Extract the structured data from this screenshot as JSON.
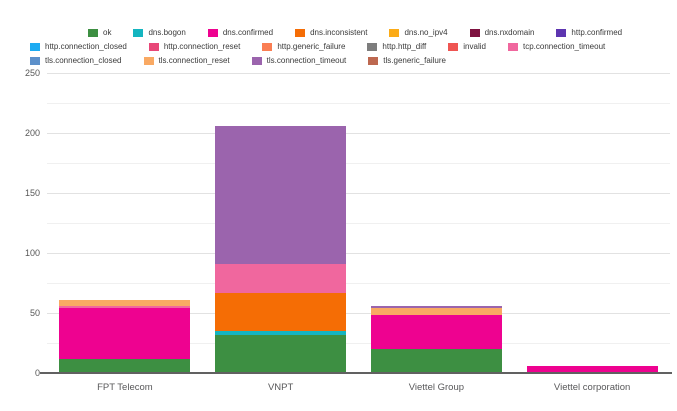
{
  "chart_data": {
    "type": "bar",
    "stacked": true,
    "title": "",
    "xlabel": "",
    "ylabel": "",
    "categories": [
      "FPT Telecom",
      "VNPT",
      "Viettel Group",
      "Viettel corporation"
    ],
    "series": [
      {
        "name": "ok",
        "values": [
          12,
          32,
          20,
          0
        ]
      },
      {
        "name": "dns.bogon",
        "values": [
          0,
          3,
          0,
          0
        ]
      },
      {
        "name": "dns.confirmed",
        "values": [
          42,
          0,
          28,
          6
        ]
      },
      {
        "name": "dns.inconsistent",
        "values": [
          0,
          32,
          0,
          0
        ]
      },
      {
        "name": "dns.no_ipv4",
        "values": [
          0,
          0,
          0,
          0
        ]
      },
      {
        "name": "dns.nxdomain",
        "values": [
          0,
          0,
          0,
          0
        ]
      },
      {
        "name": "http.confirmed",
        "values": [
          0,
          0,
          0,
          0
        ]
      },
      {
        "name": "http.connection_closed",
        "values": [
          0,
          0,
          0,
          0
        ]
      },
      {
        "name": "http.connection_reset",
        "values": [
          0,
          0,
          0,
          0
        ]
      },
      {
        "name": "http.generic_failure",
        "values": [
          0,
          0,
          0,
          0
        ]
      },
      {
        "name": "http.http_diff",
        "values": [
          0,
          0,
          0,
          0
        ]
      },
      {
        "name": "invalid",
        "values": [
          0,
          0,
          0,
          0
        ]
      },
      {
        "name": "tcp.connection_timeout",
        "values": [
          2,
          24,
          0,
          0
        ]
      },
      {
        "name": "tls.connection_closed",
        "values": [
          0,
          0,
          0,
          0
        ]
      },
      {
        "name": "tls.connection_reset",
        "values": [
          5,
          0,
          6,
          0
        ]
      },
      {
        "name": "tls.connection_timeout",
        "values": [
          0,
          115,
          2,
          0
        ]
      },
      {
        "name": "tls.generic_failure",
        "values": [
          0,
          0,
          0,
          0
        ]
      }
    ],
    "colors": {
      "ok": "#3d8f42",
      "dns.bogon": "#14b5c0",
      "dns.confirmed": "#ee0290",
      "dns.inconsistent": "#f56d05",
      "dns.no_ipv4": "#fbab17",
      "dns.nxdomain": "#7e1240",
      "http.confirmed": "#5d35b0",
      "http.connection_closed": "#1cabf2",
      "http.connection_reset": "#e84778",
      "http.generic_failure": "#fa7e53",
      "http.http_diff": "#7d7d7d",
      "invalid": "#ef5552",
      "tcp.connection_timeout": "#f0679e",
      "tls.connection_closed": "#5c90ca",
      "tls.connection_reset": "#f9a963",
      "tls.connection_timeout": "#9b64ad",
      "tls.generic_failure": "#bd6850"
    },
    "ylim": [
      0,
      250
    ],
    "yticks": [
      0,
      50,
      100,
      150,
      200,
      250
    ],
    "minor_tick_step": 25,
    "grid": true,
    "legend_position": "top",
    "legend_rows": [
      [
        "ok",
        "dns.bogon",
        "dns.confirmed",
        "dns.inconsistent",
        "dns.no_ipv4",
        "dns.nxdomain",
        "http.confirmed"
      ],
      [
        "http.connection_closed",
        "http.connection_reset",
        "http.generic_failure",
        "http.http_diff",
        "invalid",
        "tcp.connection_timeout"
      ],
      [
        "tls.connection_closed",
        "tls.connection_reset",
        "tls.connection_timeout",
        "tls.generic_failure"
      ]
    ]
  }
}
